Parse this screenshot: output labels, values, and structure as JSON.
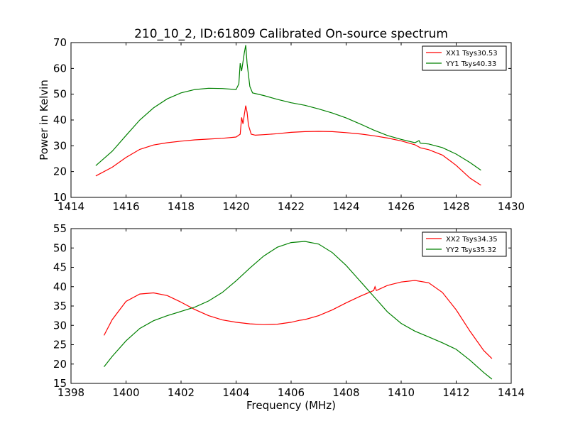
{
  "figure": {
    "title": "210_10_2, ID:61809 Calibrated On-source spectrum",
    "xlabel_bottom": "Frequency (MHz)"
  },
  "chart_data": [
    {
      "type": "line",
      "title": "210_10_2, ID:61809 Calibrated On-source spectrum",
      "xlabel": "",
      "ylabel": "Power in Kelvin",
      "xlim": [
        1414,
        1430
      ],
      "ylim": [
        10,
        70
      ],
      "xticks": [
        1414,
        1416,
        1418,
        1420,
        1422,
        1424,
        1426,
        1428,
        1430
      ],
      "yticks": [
        10,
        20,
        30,
        40,
        50,
        60,
        70
      ],
      "legend": "top-right",
      "series": [
        {
          "name": "XX1 Tsys30.53",
          "color": "#ff0000",
          "points": [
            [
              1414.9,
              18.3
            ],
            [
              1415.5,
              21.7
            ],
            [
              1416.0,
              25.5
            ],
            [
              1416.5,
              28.6
            ],
            [
              1417.0,
              30.3
            ],
            [
              1417.5,
              31.2
            ],
            [
              1418.0,
              31.8
            ],
            [
              1418.5,
              32.3
            ],
            [
              1419.0,
              32.6
            ],
            [
              1419.5,
              32.9
            ],
            [
              1420.0,
              33.4
            ],
            [
              1420.15,
              34.5
            ],
            [
              1420.2,
              41.0
            ],
            [
              1420.25,
              38.5
            ],
            [
              1420.3,
              42.0
            ],
            [
              1420.35,
              45.6
            ],
            [
              1420.4,
              43.0
            ],
            [
              1420.45,
              38.0
            ],
            [
              1420.55,
              34.5
            ],
            [
              1420.7,
              34.1
            ],
            [
              1421.0,
              34.3
            ],
            [
              1421.5,
              34.7
            ],
            [
              1422.0,
              35.2
            ],
            [
              1422.5,
              35.5
            ],
            [
              1423.0,
              35.6
            ],
            [
              1423.5,
              35.5
            ],
            [
              1424.0,
              35.1
            ],
            [
              1424.5,
              34.6
            ],
            [
              1425.0,
              33.9
            ],
            [
              1425.5,
              33.0
            ],
            [
              1426.0,
              31.9
            ],
            [
              1426.5,
              30.4
            ],
            [
              1426.7,
              29.2
            ],
            [
              1427.0,
              28.5
            ],
            [
              1427.5,
              26.4
            ],
            [
              1428.0,
              22.4
            ],
            [
              1428.5,
              17.5
            ],
            [
              1428.9,
              14.7
            ]
          ]
        },
        {
          "name": "YY1 Tsys40.33",
          "color": "#008000",
          "points": [
            [
              1414.9,
              22.3
            ],
            [
              1415.5,
              27.9
            ],
            [
              1416.0,
              34.0
            ],
            [
              1416.5,
              40.0
            ],
            [
              1417.0,
              44.7
            ],
            [
              1417.5,
              48.2
            ],
            [
              1418.0,
              50.5
            ],
            [
              1418.5,
              51.8
            ],
            [
              1419.0,
              52.3
            ],
            [
              1419.5,
              52.2
            ],
            [
              1420.0,
              51.8
            ],
            [
              1420.1,
              54.0
            ],
            [
              1420.15,
              62.0
            ],
            [
              1420.2,
              59.0
            ],
            [
              1420.25,
              62.5
            ],
            [
              1420.3,
              66.0
            ],
            [
              1420.35,
              69.0
            ],
            [
              1420.4,
              62.0
            ],
            [
              1420.5,
              53.0
            ],
            [
              1420.6,
              50.5
            ],
            [
              1421.0,
              49.5
            ],
            [
              1421.5,
              48.0
            ],
            [
              1422.0,
              46.7
            ],
            [
              1422.5,
              45.7
            ],
            [
              1423.0,
              44.3
            ],
            [
              1423.5,
              42.7
            ],
            [
              1424.0,
              40.8
            ],
            [
              1424.5,
              38.5
            ],
            [
              1425.0,
              36.1
            ],
            [
              1425.5,
              34.0
            ],
            [
              1426.0,
              32.5
            ],
            [
              1426.5,
              31.2
            ],
            [
              1426.65,
              32.0
            ],
            [
              1426.7,
              31.0
            ],
            [
              1427.0,
              30.7
            ],
            [
              1427.5,
              29.3
            ],
            [
              1428.0,
              26.8
            ],
            [
              1428.5,
              23.5
            ],
            [
              1428.9,
              20.5
            ]
          ]
        }
      ]
    },
    {
      "type": "line",
      "title": "",
      "xlabel": "Frequency (MHz)",
      "ylabel": "",
      "xlim": [
        1398,
        1414
      ],
      "ylim": [
        15,
        55
      ],
      "xticks": [
        1398,
        1400,
        1402,
        1404,
        1406,
        1408,
        1410,
        1412,
        1414
      ],
      "yticks": [
        15,
        20,
        25,
        30,
        35,
        40,
        45,
        50,
        55
      ],
      "legend": "top-right",
      "series": [
        {
          "name": "XX2 Tsys34.35",
          "color": "#ff0000",
          "points": [
            [
              1399.2,
              27.4
            ],
            [
              1399.5,
              31.5
            ],
            [
              1400.0,
              36.2
            ],
            [
              1400.5,
              38.1
            ],
            [
              1401.0,
              38.4
            ],
            [
              1401.5,
              37.7
            ],
            [
              1402.0,
              36.0
            ],
            [
              1402.5,
              34.1
            ],
            [
              1403.0,
              32.5
            ],
            [
              1403.5,
              31.4
            ],
            [
              1404.0,
              30.8
            ],
            [
              1404.5,
              30.4
            ],
            [
              1405.0,
              30.2
            ],
            [
              1405.5,
              30.3
            ],
            [
              1406.0,
              30.8
            ],
            [
              1406.3,
              31.3
            ],
            [
              1406.5,
              31.5
            ],
            [
              1407.0,
              32.5
            ],
            [
              1407.5,
              34.0
            ],
            [
              1408.0,
              35.8
            ],
            [
              1408.5,
              37.5
            ],
            [
              1409.0,
              39.0
            ],
            [
              1409.05,
              40.0
            ],
            [
              1409.1,
              39.0
            ],
            [
              1409.5,
              40.3
            ],
            [
              1410.0,
              41.2
            ],
            [
              1410.5,
              41.6
            ],
            [
              1411.0,
              41.0
            ],
            [
              1411.5,
              38.5
            ],
            [
              1412.0,
              34.0
            ],
            [
              1412.5,
              28.5
            ],
            [
              1413.0,
              23.5
            ],
            [
              1413.3,
              21.4
            ]
          ]
        },
        {
          "name": "YY2 Tsys35.32",
          "color": "#008000",
          "points": [
            [
              1399.2,
              19.3
            ],
            [
              1399.5,
              22.0
            ],
            [
              1400.0,
              26.0
            ],
            [
              1400.5,
              29.2
            ],
            [
              1401.0,
              31.2
            ],
            [
              1401.5,
              32.5
            ],
            [
              1402.0,
              33.6
            ],
            [
              1402.5,
              34.7
            ],
            [
              1403.0,
              36.3
            ],
            [
              1403.5,
              38.5
            ],
            [
              1404.0,
              41.5
            ],
            [
              1404.5,
              44.8
            ],
            [
              1405.0,
              47.9
            ],
            [
              1405.5,
              50.2
            ],
            [
              1406.0,
              51.4
            ],
            [
              1406.5,
              51.7
            ],
            [
              1407.0,
              51.0
            ],
            [
              1407.5,
              48.8
            ],
            [
              1408.0,
              45.5
            ],
            [
              1408.5,
              41.5
            ],
            [
              1409.0,
              37.5
            ],
            [
              1409.5,
              33.5
            ],
            [
              1410.0,
              30.5
            ],
            [
              1410.5,
              28.5
            ],
            [
              1411.0,
              27.0
            ],
            [
              1411.5,
              25.5
            ],
            [
              1412.0,
              23.8
            ],
            [
              1412.5,
              21.0
            ],
            [
              1413.0,
              17.8
            ],
            [
              1413.3,
              16.1
            ]
          ]
        }
      ]
    }
  ]
}
